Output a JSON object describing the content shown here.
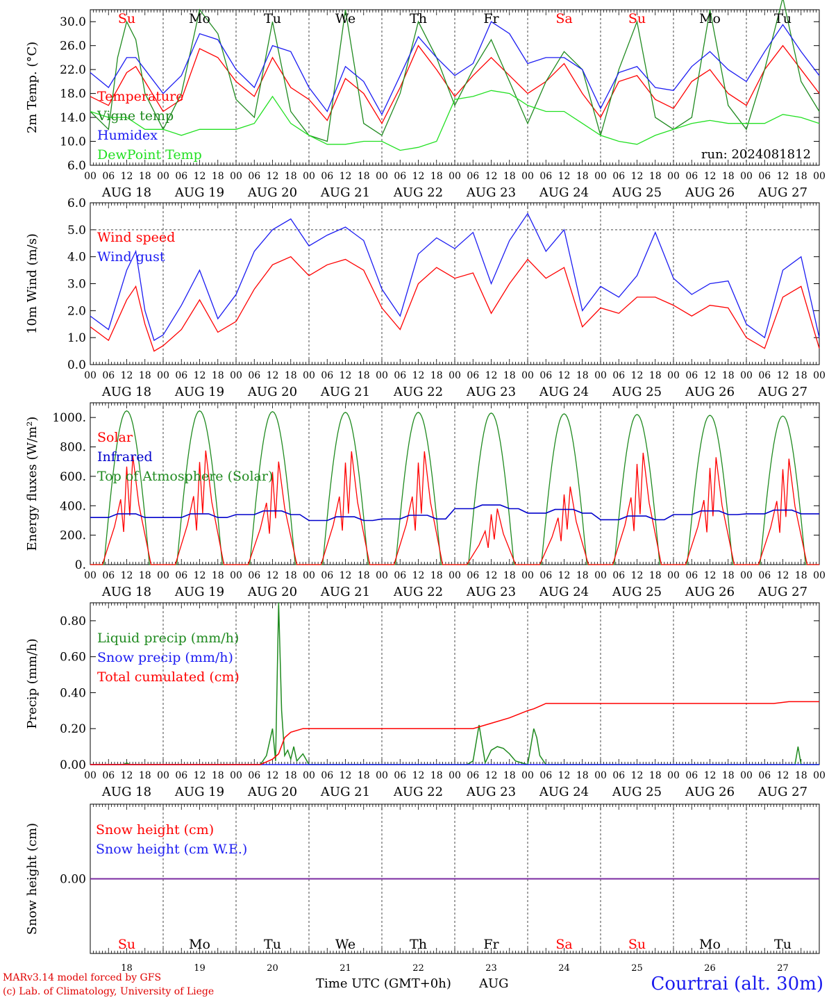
{
  "colors": {
    "temperature": "#ff0000",
    "vigne": "#1f8a1f",
    "humidex": "#1c1cf2",
    "dewpoint": "#22e022",
    "wind_speed": "#ff0000",
    "wind_gust": "#1c1cf2",
    "solar": "#ff0000",
    "infrared": "#0000cc",
    "toa": "#1f8a1f",
    "liquid": "#1f8a1f",
    "snow_precip": "#1c1cf2",
    "total_cum": "#ff0000",
    "snow_height": "#ff0000",
    "snow_we": "#1c1cf2",
    "snow_line": "#7a2aa0",
    "weekend": "#ff0000",
    "weekday": "#000000"
  },
  "time_axis": {
    "hour_ticks": [
      "00",
      "06",
      "12",
      "18"
    ],
    "dates": [
      "AUG 18",
      "AUG 19",
      "AUG 20",
      "AUG 21",
      "AUG 22",
      "AUG 23",
      "AUG 24",
      "AUG 25",
      "AUG 26",
      "AUG 27"
    ],
    "weekdays": [
      {
        "label": "Su",
        "weekend": true
      },
      {
        "label": "Mo",
        "weekend": false
      },
      {
        "label": "Tu",
        "weekend": false
      },
      {
        "label": "We",
        "weekend": false
      },
      {
        "label": "Th",
        "weekend": false
      },
      {
        "label": "Fr",
        "weekend": false
      },
      {
        "label": "Sa",
        "weekend": true
      },
      {
        "label": "Su",
        "weekend": true
      },
      {
        "label": "Mo",
        "weekend": false
      },
      {
        "label": "Tu",
        "weekend": false
      }
    ],
    "day_numbers": [
      "18",
      "19",
      "20",
      "21",
      "22",
      "23",
      "24",
      "25",
      "26",
      "27"
    ],
    "xlabel": "Time UTC (GMT+0h)",
    "month": "AUG"
  },
  "chart_data": [
    {
      "type": "line",
      "ylabel": "2m Temp. (°C)",
      "ylim": [
        6,
        32
      ],
      "yticks": [
        "6.0",
        "10.0",
        "14.0",
        "18.0",
        "22.0",
        "26.0",
        "30.0"
      ],
      "ytick_values": [
        6,
        10,
        14,
        18,
        22,
        26,
        30
      ],
      "annotation": "run: 2024081812",
      "x_unit": "hours since AUG 18 00 UTC",
      "series": [
        {
          "name": "Temperature",
          "color_key": "temperature",
          "x": [
            0,
            6,
            12,
            15,
            18,
            24,
            30,
            36,
            42,
            48,
            54,
            60,
            66,
            72,
            78,
            84,
            90,
            96,
            102,
            108,
            114,
            120,
            126,
            132,
            138,
            144,
            150,
            156,
            162,
            168,
            174,
            180,
            186,
            192,
            198,
            204,
            210,
            216,
            222,
            228,
            234,
            240
          ],
          "values": [
            17.5,
            16,
            21.5,
            22.5,
            20,
            15,
            17,
            25.5,
            24,
            20,
            17.5,
            24,
            19,
            17,
            13.5,
            20.5,
            18,
            13,
            19,
            26,
            22,
            17.5,
            21,
            24,
            21,
            18,
            20,
            23,
            18,
            14,
            20,
            21,
            17,
            15.5,
            20,
            22,
            18,
            16,
            22,
            26,
            22,
            18
          ]
        },
        {
          "name": "Vigne temp",
          "color_key": "vigne",
          "x": [
            0,
            6,
            9,
            12,
            15,
            18,
            24,
            30,
            36,
            42,
            48,
            54,
            60,
            66,
            72,
            78,
            84,
            90,
            96,
            102,
            108,
            114,
            120,
            126,
            132,
            138,
            144,
            150,
            156,
            162,
            168,
            174,
            180,
            186,
            192,
            198,
            204,
            210,
            216,
            222,
            228,
            234,
            240
          ],
          "values": [
            15,
            12,
            24,
            30,
            27,
            18,
            12,
            18,
            32,
            28,
            17,
            14,
            30,
            15,
            11,
            10,
            32,
            13,
            11,
            18,
            30,
            24,
            16,
            22,
            27,
            20,
            13,
            20,
            25,
            22,
            11,
            22,
            30,
            14,
            12,
            14,
            32,
            16,
            12,
            22,
            34,
            20,
            15
          ]
        },
        {
          "name": "Humidex",
          "color_key": "humidex",
          "x": [
            0,
            6,
            12,
            15,
            18,
            24,
            30,
            36,
            42,
            48,
            54,
            60,
            66,
            72,
            78,
            84,
            90,
            96,
            102,
            108,
            114,
            120,
            126,
            132,
            138,
            144,
            150,
            156,
            162,
            168,
            174,
            180,
            186,
            192,
            198,
            204,
            210,
            216,
            222,
            228,
            234,
            240
          ],
          "values": [
            21.5,
            19,
            24,
            24,
            22,
            18,
            21,
            28,
            27,
            22,
            19,
            26,
            25,
            19,
            15,
            22.5,
            20,
            14.5,
            21,
            27.5,
            24,
            21,
            23,
            30,
            28,
            23,
            24,
            24,
            22,
            15.5,
            21.5,
            22.5,
            19,
            18.5,
            22.5,
            25,
            22,
            20,
            25,
            29.5,
            25,
            21
          ]
        },
        {
          "name": "DewPoint Temp",
          "color_key": "dewpoint",
          "x": [
            0,
            6,
            12,
            18,
            24,
            30,
            36,
            42,
            48,
            54,
            60,
            66,
            72,
            78,
            84,
            90,
            96,
            102,
            108,
            114,
            120,
            126,
            132,
            138,
            144,
            150,
            156,
            162,
            168,
            174,
            180,
            186,
            192,
            198,
            204,
            210,
            216,
            222,
            228,
            234,
            240
          ],
          "values": [
            15,
            14,
            14,
            12,
            12,
            11,
            12,
            12,
            12,
            13,
            17.5,
            13,
            11,
            9.5,
            9.5,
            10,
            10,
            8.5,
            9,
            10,
            17,
            17.5,
            18.5,
            18,
            16,
            15,
            15,
            13,
            11,
            10,
            9.5,
            11,
            12,
            13,
            13.5,
            13,
            13,
            13,
            14.5,
            14,
            13
          ]
        }
      ]
    },
    {
      "type": "line",
      "ylabel": "10m Wind (m/s)",
      "ylim": [
        0,
        6
      ],
      "yticks": [
        "0.0",
        "1.0",
        "2.0",
        "3.0",
        "4.0",
        "5.0",
        "6.0"
      ],
      "ytick_values": [
        0,
        1,
        2,
        3,
        4,
        5,
        6
      ],
      "reference_line": 5,
      "x_unit": "hours since AUG 18 00 UTC",
      "series": [
        {
          "name": "Wind speed",
          "color_key": "wind_speed",
          "x": [
            0,
            6,
            12,
            15,
            18,
            21,
            24,
            30,
            36,
            42,
            48,
            54,
            60,
            66,
            72,
            78,
            84,
            90,
            96,
            102,
            108,
            114,
            120,
            126,
            132,
            138,
            144,
            150,
            156,
            162,
            168,
            174,
            180,
            186,
            192,
            198,
            204,
            210,
            216,
            222,
            228,
            234,
            240
          ],
          "values": [
            1.4,
            0.9,
            2.4,
            2.9,
            1.5,
            0.5,
            0.7,
            1.3,
            2.4,
            1.2,
            1.6,
            2.8,
            3.7,
            4.0,
            3.3,
            3.7,
            3.9,
            3.5,
            2.1,
            1.3,
            3.0,
            3.6,
            3.2,
            3.4,
            1.9,
            3.0,
            3.9,
            3.2,
            3.6,
            1.4,
            2.1,
            1.9,
            2.5,
            2.5,
            2.2,
            1.8,
            2.2,
            2.1,
            1.0,
            0.6,
            2.5,
            2.9,
            0.6
          ]
        },
        {
          "name": "Wind gust",
          "color_key": "wind_gust",
          "x": [
            0,
            6,
            12,
            15,
            18,
            21,
            24,
            30,
            36,
            42,
            48,
            54,
            60,
            66,
            72,
            78,
            84,
            90,
            96,
            102,
            108,
            114,
            120,
            126,
            132,
            138,
            144,
            150,
            156,
            162,
            168,
            174,
            180,
            186,
            192,
            198,
            204,
            210,
            216,
            222,
            228,
            234,
            240
          ],
          "values": [
            1.8,
            1.3,
            3.5,
            4.2,
            2.0,
            0.9,
            1.1,
            2.2,
            3.5,
            1.7,
            2.6,
            4.2,
            5.0,
            5.4,
            4.4,
            4.8,
            5.1,
            4.6,
            2.8,
            1.8,
            4.1,
            4.7,
            4.3,
            4.9,
            3.0,
            4.6,
            5.6,
            4.2,
            5.0,
            2.0,
            2.9,
            2.5,
            3.3,
            4.9,
            3.2,
            2.6,
            3.0,
            3.1,
            1.5,
            1.0,
            3.5,
            4.0,
            1.0
          ]
        }
      ]
    },
    {
      "type": "line",
      "ylabel": "Energy fluxes (W/m²)",
      "ylim": [
        0,
        1100
      ],
      "yticks": [
        "0.",
        "200.",
        "400.",
        "600.",
        "800.",
        "1000."
      ],
      "ytick_values": [
        0,
        200,
        400,
        600,
        800,
        1000
      ],
      "x_unit": "hours since AUG 18 00 UTC",
      "series": [
        {
          "name": "Solar",
          "color_key": "solar",
          "daily_peak": [
            740,
            775,
            700,
            770,
            770,
            380,
            530,
            760,
            730,
            720
          ],
          "x_in_day": [
            4,
            8,
            10,
            11,
            12,
            13,
            14,
            16,
            20
          ],
          "shape": [
            0,
            0.35,
            0.6,
            0.3,
            0.9,
            0.45,
            1,
            0.55,
            0
          ]
        },
        {
          "name": "Infrared",
          "color_key": "infrared",
          "daily_level": [
            320,
            320,
            340,
            300,
            310,
            380,
            350,
            305,
            340,
            345
          ]
        },
        {
          "name": "Top of Atmosphere (Solar)",
          "color_key": "toa",
          "daily_peak": [
            1045,
            1045,
            1040,
            1035,
            1035,
            1030,
            1025,
            1020,
            1015,
            1010
          ],
          "sunrise_hour": 4.5,
          "sunset_hour": 19.5
        }
      ]
    },
    {
      "type": "line",
      "ylabel": "Precip (mm/h)",
      "ylim": [
        0,
        0.9
      ],
      "yticks": [
        "0.00",
        "0.20",
        "0.40",
        "0.60",
        "0.80"
      ],
      "ytick_values": [
        0,
        0.2,
        0.4,
        0.6,
        0.8
      ],
      "x_unit": "hours since AUG 18 00 UTC",
      "series": [
        {
          "name": "Liquid precip (mm/h)",
          "color_key": "liquid",
          "x": [
            0,
            11,
            12,
            13,
            56,
            58,
            60,
            61,
            62,
            63,
            64,
            65,
            66,
            67,
            68,
            70,
            72,
            74,
            76,
            78,
            120,
            124,
            126,
            128,
            130,
            132,
            134,
            136,
            138,
            140,
            144,
            146,
            147,
            148,
            150,
            228,
            232,
            233,
            234,
            240
          ],
          "values": [
            0,
            0,
            0.01,
            0,
            0,
            0.05,
            0.2,
            0.02,
            0.9,
            0.3,
            0.05,
            0.08,
            0.03,
            0.1,
            0.02,
            0.06,
            0,
            0,
            0,
            0,
            0,
            0,
            0.02,
            0.22,
            0.01,
            0.08,
            0.1,
            0.09,
            0.06,
            0.02,
            0,
            0.2,
            0.15,
            0.05,
            0,
            0,
            0,
            0.1,
            0,
            0
          ]
        },
        {
          "name": "Snow precip (mm/h)",
          "color_key": "snow_precip",
          "x": [
            0,
            240
          ],
          "values": [
            0,
            0
          ]
        },
        {
          "name": "Total cumulated (cm)",
          "color_key": "total_cum",
          "x": [
            0,
            56,
            60,
            62,
            64,
            66,
            70,
            72,
            80,
            100,
            120,
            126,
            132,
            138,
            144,
            146,
            150,
            170,
            200,
            225,
            230,
            240
          ],
          "values": [
            0,
            0,
            0.03,
            0.06,
            0.15,
            0.18,
            0.2,
            0.2,
            0.2,
            0.2,
            0.2,
            0.2,
            0.23,
            0.26,
            0.3,
            0.31,
            0.34,
            0.34,
            0.34,
            0.34,
            0.35,
            0.35
          ]
        }
      ]
    },
    {
      "type": "line",
      "ylabel": "Snow height (cm)",
      "ylim": [
        -1,
        1
      ],
      "yticks": [
        "0.00"
      ],
      "ytick_values": [
        0
      ],
      "x_unit": "hours since AUG 18 00 UTC",
      "series": [
        {
          "name": "Snow height (cm)",
          "color_key": "snow_height",
          "x": [
            0,
            240
          ],
          "values": [
            0,
            0
          ]
        },
        {
          "name": "Snow height (cm W.E.)",
          "color_key": "snow_we",
          "x": [
            0,
            240
          ],
          "values": [
            0,
            0
          ]
        }
      ]
    }
  ],
  "footer": {
    "model": "MARv3.14 model forced by GFS",
    "credit": "(c) Lab. of Climatology, University of Liege",
    "station": "Courtrai (alt. 30m)"
  }
}
